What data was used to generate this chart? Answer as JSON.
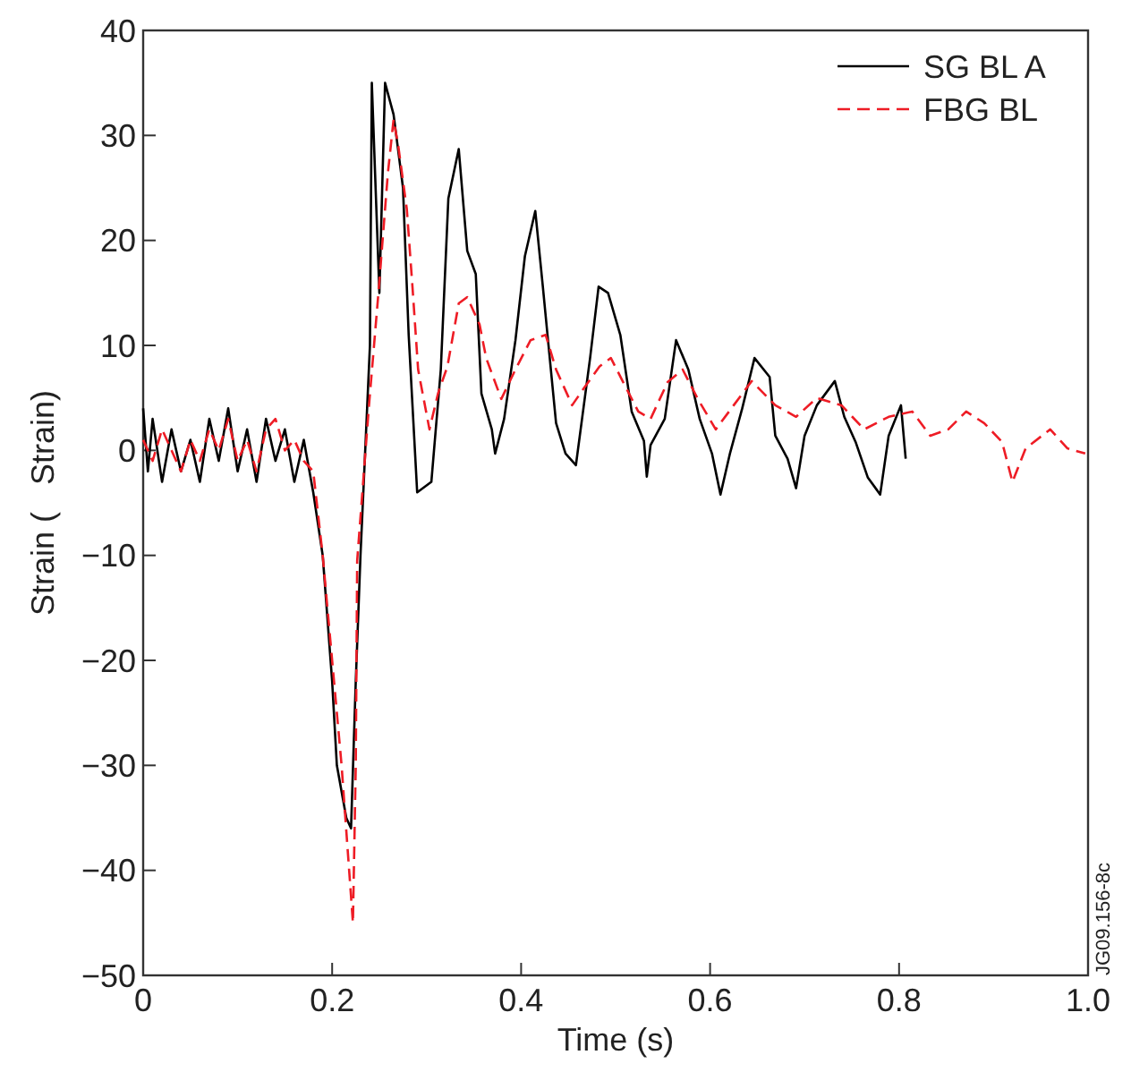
{
  "chart_data": {
    "type": "line",
    "xlabel": "Time (s)",
    "ylabel": "Strain (   Strain)",
    "xlim": [
      0,
      1.0
    ],
    "ylim": [
      -50,
      40
    ],
    "xticks": [
      0,
      0.2,
      0.4,
      0.6,
      0.8,
      {
        "value": 1.0,
        "label": "1.0"
      }
    ],
    "yticks": [
      -50,
      -40,
      -30,
      -20,
      -10,
      0,
      10,
      20,
      30,
      40
    ],
    "grid": false,
    "legend": "top right",
    "annotations": [
      "JG09.156-8c"
    ],
    "series": [
      {
        "name": "SG BL A",
        "color": "#000000",
        "line_style": "solid",
        "x": [
          0,
          0.005,
          0.01,
          0.02,
          0.03,
          0.04,
          0.05,
          0.06,
          0.07,
          0.08,
          0.09,
          0.1,
          0.11,
          0.12,
          0.13,
          0.14,
          0.15,
          0.16,
          0.17,
          0.18,
          0.19,
          0.2,
          0.205,
          0.215,
          0.22,
          0.225,
          0.23,
          0.235,
          0.24,
          0.242,
          0.25,
          0.256,
          0.265,
          0.275,
          0.281,
          0.29,
          0.305,
          0.315,
          0.323,
          0.334,
          0.343,
          0.352,
          0.358,
          0.369,
          0.3725,
          0.382,
          0.394,
          0.404,
          0.415,
          0.423,
          0.429,
          0.437,
          0.447,
          0.458,
          0.473,
          0.482,
          0.492,
          0.505,
          0.517,
          0.53,
          0.533,
          0.537,
          0.552,
          0.564,
          0.577,
          0.589,
          0.602,
          0.611,
          0.621,
          0.634,
          0.647,
          0.663,
          0.669,
          0.682,
          0.691,
          0.7,
          0.713,
          0.732,
          0.742,
          0.754,
          0.767,
          0.78,
          0.789,
          0.802,
          0.807
        ],
        "values": [
          4,
          -2,
          3,
          -3,
          2,
          -2,
          1,
          -3,
          3,
          -1,
          4,
          -2,
          2,
          -3,
          3,
          -1,
          2,
          -3,
          1,
          -4,
          -10,
          -22,
          -30,
          -35,
          -36,
          -22,
          -10,
          0,
          10,
          35,
          15,
          35,
          32,
          25,
          11,
          -4,
          -3,
          7.7,
          24,
          28.7,
          19,
          16.8,
          5.4,
          2,
          -0.3,
          3,
          10.5,
          18.5,
          22.8,
          15.6,
          10,
          2.6,
          -0.3,
          -1.4,
          8.8,
          15.6,
          15,
          11,
          3.7,
          0.9,
          -2.5,
          0.5,
          3,
          10.5,
          7.7,
          3,
          -0.3,
          -4.2,
          -0.3,
          4,
          8.8,
          7,
          1.4,
          -0.8,
          -3.6,
          1.4,
          4.3,
          6.6,
          3.2,
          0.8,
          -2.6,
          -4.2,
          1.4,
          4.3,
          -0.8
        ]
      },
      {
        "name": "FBG BL",
        "color": "#ee1c25",
        "line_style": "dashed",
        "x": [
          0,
          0.01,
          0.02,
          0.03,
          0.04,
          0.05,
          0.06,
          0.07,
          0.08,
          0.09,
          0.1,
          0.11,
          0.12,
          0.13,
          0.14,
          0.15,
          0.16,
          0.17,
          0.18,
          0.19,
          0.2,
          0.21,
          0.222,
          0.225,
          0.2265,
          0.239,
          0.249,
          0.259,
          0.265,
          0.27,
          0.279,
          0.285,
          0.291,
          0.303,
          0.312,
          0.322,
          0.334,
          0.343,
          0.356,
          0.363,
          0.379,
          0.394,
          0.41,
          0.426,
          0.437,
          0.454,
          0.467,
          0.483,
          0.495,
          0.508,
          0.524,
          0.537,
          0.555,
          0.571,
          0.587,
          0.606,
          0.625,
          0.644,
          0.669,
          0.691,
          0.713,
          0.739,
          0.763,
          0.789,
          0.814,
          0.833,
          0.852,
          0.871,
          0.89,
          0.909,
          0.92,
          0.934,
          0.96,
          0.978,
          0.997
        ],
        "values": [
          1,
          -1,
          2,
          0,
          -2,
          1,
          -1,
          2,
          0,
          3,
          -1,
          1,
          -2,
          2,
          3,
          0,
          1,
          -1,
          -2,
          -10,
          -20,
          -30,
          -45,
          -30,
          -10.5,
          4.3,
          15,
          26.4,
          31.5,
          29,
          23,
          15.6,
          7.7,
          2,
          5.4,
          8,
          14,
          14.6,
          12,
          8.8,
          4.9,
          7.7,
          10.5,
          11,
          7.7,
          4.3,
          6,
          8,
          8.8,
          6.5,
          3.7,
          3,
          6.5,
          7.7,
          4.9,
          2,
          4.3,
          6.6,
          4.3,
          3.2,
          5,
          4.3,
          2,
          3.2,
          3.7,
          1.4,
          2,
          3.7,
          2.6,
          0.8,
          -3,
          0.2,
          2,
          0.2,
          -0.3
        ]
      }
    ]
  }
}
